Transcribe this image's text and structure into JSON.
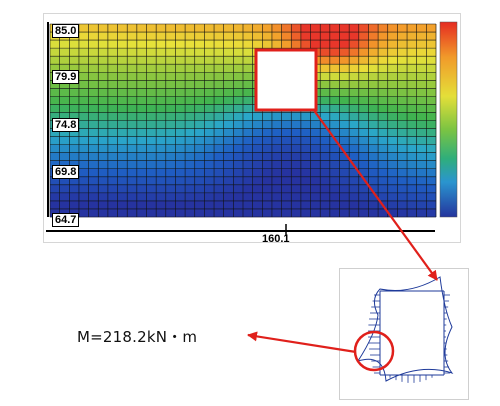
{
  "contour_plot": {
    "y_axis_labels": [
      "85.0",
      "79.9",
      "74.8",
      "69.8",
      "64.7"
    ],
    "x_axis_label": "160.1",
    "color_scale": [
      "#2633a0",
      "#1f5fc4",
      "#2aa7c9",
      "#3fb34f",
      "#8dc63f",
      "#e8e23a",
      "#f39a2a",
      "#e8362a"
    ]
  },
  "callout": {
    "moment_text": "M=218.2kN・m",
    "arrow_color": "#e0201b"
  },
  "icons": {
    "colorbar": "color-scale-legend",
    "opening": "opening-rectangle",
    "highlight": "highlight-circle"
  }
}
